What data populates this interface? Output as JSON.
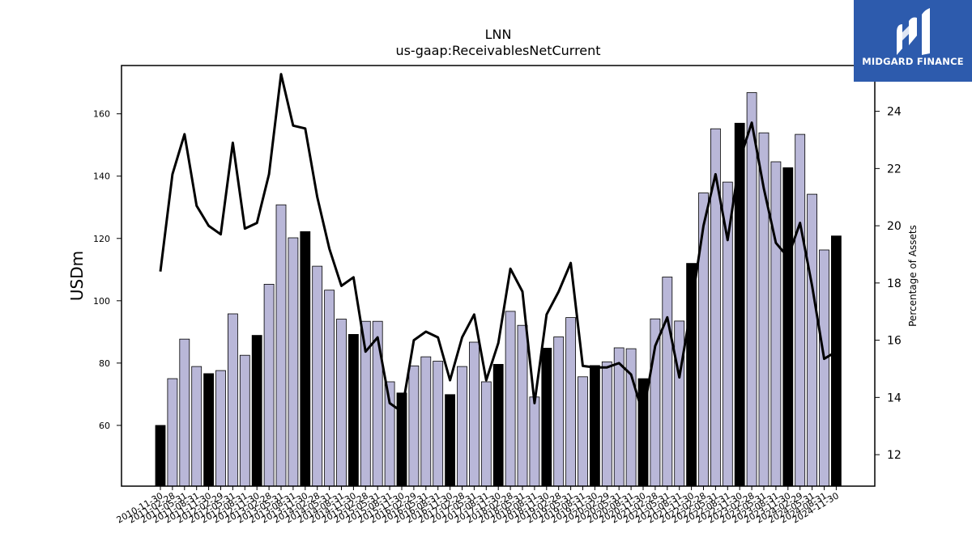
{
  "brand": {
    "name": "MIDGARD FINANCE",
    "bg_color": "#2d5bad"
  },
  "colors": {
    "bar_normal": "#b9b7d8",
    "bar_highlight": "#000000",
    "line": "#000000"
  },
  "chart_data": {
    "type": "bar",
    "title": "LNN",
    "subtitle": "us-gaap:ReceivablesNetCurrent",
    "ylabel": "USDm",
    "y2label": "Percentage of Assets",
    "ylim": [
      40.5,
      175.5
    ],
    "y2lim": [
      10.9,
      25.6
    ],
    "yticks": [
      60,
      80,
      100,
      120,
      140,
      160
    ],
    "y2ticks": [
      12,
      14,
      16,
      18,
      20,
      22,
      24
    ],
    "categories": [
      "2010-11-30",
      "2011-02-28",
      "2011-05-31",
      "2011-08-31",
      "2011-11-30",
      "2012-02-29",
      "2012-05-31",
      "2012-08-31",
      "2012-11-30",
      "2013-02-28",
      "2013-05-31",
      "2013-08-31",
      "2013-11-30",
      "2014-02-28",
      "2014-05-31",
      "2014-08-31",
      "2014-11-30",
      "2015-02-28",
      "2015-05-31",
      "2015-08-31",
      "2015-11-30",
      "2016-02-29",
      "2016-05-31",
      "2016-08-31",
      "2016-11-30",
      "2017-02-28",
      "2017-05-31",
      "2017-08-31",
      "2017-11-30",
      "2018-02-28",
      "2018-05-31",
      "2018-08-31",
      "2018-11-30",
      "2019-02-28",
      "2019-05-31",
      "2019-08-31",
      "2019-11-30",
      "2020-02-29",
      "2020-05-31",
      "2020-08-31",
      "2020-11-30",
      "2021-02-28",
      "2021-05-31",
      "2021-08-31",
      "2021-11-30",
      "2022-02-28",
      "2022-05-31",
      "2022-08-31",
      "2022-11-30",
      "2023-02-28",
      "2023-05-31",
      "2023-08-31",
      "2023-11-30",
      "2024-02-29",
      "2024-05-31",
      "2024-08-31",
      "2024-11-30"
    ],
    "series": [
      {
        "type": "bar",
        "values": [
          60.0,
          75.0,
          87.7,
          78.9,
          76.6,
          77.6,
          95.8,
          82.5,
          88.9,
          105.3,
          130.8,
          120.2,
          122.2,
          111.1,
          103.4,
          94.1,
          89.2,
          93.4,
          93.4,
          74.0,
          70.4,
          79.1,
          82.0,
          80.6,
          69.9,
          78.9,
          86.7,
          74.0,
          79.6,
          96.6,
          92.1,
          69.1,
          84.8,
          88.4,
          94.6,
          75.6,
          79.2,
          80.4,
          84.9,
          84.6,
          75.0,
          94.2,
          107.6,
          93.5,
          112.0,
          134.6,
          155.2,
          138.1,
          157.0,
          166.8,
          153.9,
          144.6,
          142.7,
          153.4,
          134.2,
          116.3,
          120.8
        ],
        "highlight_every": 4
      },
      {
        "type": "line",
        "axis": "right",
        "values": [
          18.4,
          21.8,
          23.2,
          20.7,
          20.0,
          19.7,
          22.9,
          19.9,
          20.1,
          21.8,
          25.3,
          23.5,
          23.4,
          21.0,
          19.2,
          17.9,
          18.2,
          15.6,
          16.1,
          13.8,
          13.5,
          16.0,
          16.3,
          16.1,
          14.6,
          16.1,
          16.9,
          14.6,
          15.9,
          18.5,
          17.7,
          13.8,
          16.9,
          17.7,
          18.7,
          15.1,
          15.05,
          15.05,
          15.2,
          14.8,
          13.4,
          15.8,
          16.8,
          14.7,
          17.2,
          20.0,
          21.8,
          19.5,
          22.3,
          23.6,
          21.3,
          19.4,
          18.9,
          20.1,
          17.9,
          15.35,
          15.6
        ]
      }
    ]
  }
}
